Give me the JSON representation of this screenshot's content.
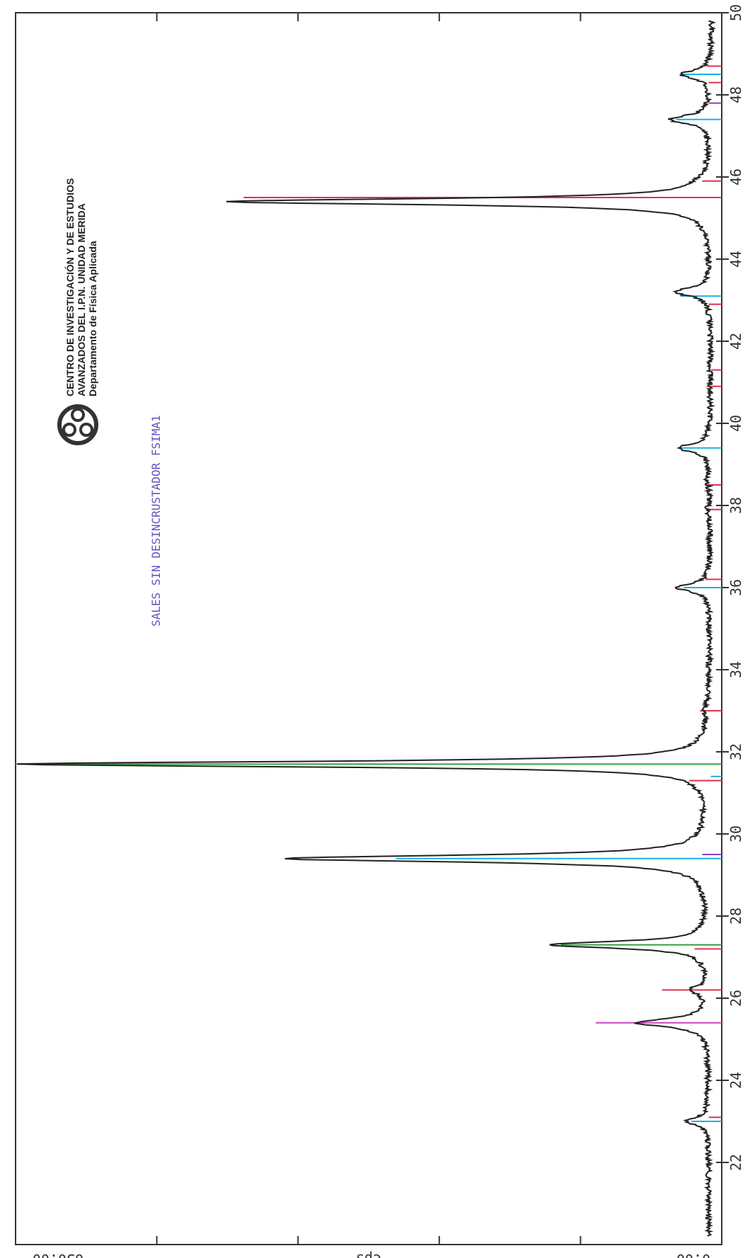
{
  "institution": {
    "line1": "CENTRO DE INVESTIGACIÓN Y DE ESTUDIOS",
    "line2": "AVANZADOS DEL I.P.N. UNIDAD MERIDA",
    "line3": "Departamento de Física Aplicada",
    "logo_icon": "cinvestav-logo-icon"
  },
  "chart_data": {
    "type": "line",
    "title": "SALES SIN DESINCRUSTADOR FSIMA1",
    "xlabel": "",
    "ylabel": "Cps",
    "xlim": [
      20,
      50
    ],
    "ylim": [
      0,
      650
    ],
    "x_ticks": [
      22,
      24,
      26,
      28,
      30,
      32,
      34,
      36,
      38,
      40,
      42,
      44,
      46,
      48,
      50
    ],
    "y_tick_labels": [
      "0.00",
      "Cps",
      "650.00"
    ],
    "background_level": 12,
    "series": [
      {
        "color": "#222222",
        "peaks": [
          {
            "x": 23.0,
            "y": 32,
            "w": 0.12
          },
          {
            "x": 25.4,
            "y": 78,
            "w": 0.12
          },
          {
            "x": 26.2,
            "y": 28,
            "w": 0.1
          },
          {
            "x": 27.3,
            "y": 160,
            "w": 0.1
          },
          {
            "x": 29.4,
            "y": 405,
            "w": 0.1
          },
          {
            "x": 31.7,
            "y": 650,
            "w": 0.08
          },
          {
            "x": 33.0,
            "y": 15,
            "w": 0.12
          },
          {
            "x": 36.0,
            "y": 42,
            "w": 0.12
          },
          {
            "x": 37.9,
            "y": 15,
            "w": 0.12
          },
          {
            "x": 38.6,
            "y": 15,
            "w": 0.12
          },
          {
            "x": 39.4,
            "y": 42,
            "w": 0.12
          },
          {
            "x": 40.9,
            "y": 12,
            "w": 0.12
          },
          {
            "x": 43.2,
            "y": 45,
            "w": 0.12
          },
          {
            "x": 45.4,
            "y": 460,
            "w": 0.09
          },
          {
            "x": 45.85,
            "y": 15,
            "w": 0.12
          },
          {
            "x": 47.4,
            "y": 50,
            "w": 0.12
          },
          {
            "x": 48.5,
            "y": 40,
            "w": 0.12
          }
        ]
      }
    ],
    "reference_lines": [
      {
        "x": 23.0,
        "y": 28,
        "color": "#1ab0e8"
      },
      {
        "x": 23.1,
        "y": 12,
        "color": "#e03050"
      },
      {
        "x": 25.4,
        "y": 116,
        "color": "#d040c0"
      },
      {
        "x": 26.2,
        "y": 55,
        "color": "#e03050"
      },
      {
        "x": 27.3,
        "y": 148,
        "color": "#30a040"
      },
      {
        "x": 27.2,
        "y": 25,
        "color": "#e03050"
      },
      {
        "x": 29.4,
        "y": 300,
        "color": "#1ab0e8"
      },
      {
        "x": 29.5,
        "y": 18,
        "color": "#8a40c0"
      },
      {
        "x": 31.3,
        "y": 30,
        "color": "#e03050"
      },
      {
        "x": 31.7,
        "y": 650,
        "color": "#30a040"
      },
      {
        "x": 31.4,
        "y": 10,
        "color": "#1ab0e8"
      },
      {
        "x": 33.0,
        "y": 20,
        "color": "#e03050"
      },
      {
        "x": 36.0,
        "y": 35,
        "color": "#1ab0e8"
      },
      {
        "x": 36.2,
        "y": 15,
        "color": "#e03050"
      },
      {
        "x": 37.9,
        "y": 12,
        "color": "#e03050"
      },
      {
        "x": 38.5,
        "y": 14,
        "color": "#e03050"
      },
      {
        "x": 39.4,
        "y": 38,
        "color": "#1ab0e8"
      },
      {
        "x": 40.9,
        "y": 14,
        "color": "#e03050"
      },
      {
        "x": 41.3,
        "y": 10,
        "color": "#e03050"
      },
      {
        "x": 43.1,
        "y": 38,
        "color": "#1ab0e8"
      },
      {
        "x": 42.9,
        "y": 12,
        "color": "#e03050"
      },
      {
        "x": 45.5,
        "y": 440,
        "color": "#30a040"
      },
      {
        "x": 45.5,
        "y": 440,
        "color": "#e03050"
      },
      {
        "x": 45.9,
        "y": 18,
        "color": "#e03050"
      },
      {
        "x": 47.4,
        "y": 42,
        "color": "#1ab0e8"
      },
      {
        "x": 47.8,
        "y": 12,
        "color": "#8a40c0"
      },
      {
        "x": 48.5,
        "y": 35,
        "color": "#1ab0e8"
      },
      {
        "x": 48.7,
        "y": 14,
        "color": "#e03050"
      },
      {
        "x": 48.3,
        "y": 12,
        "color": "#e03050"
      }
    ],
    "grid": false
  }
}
